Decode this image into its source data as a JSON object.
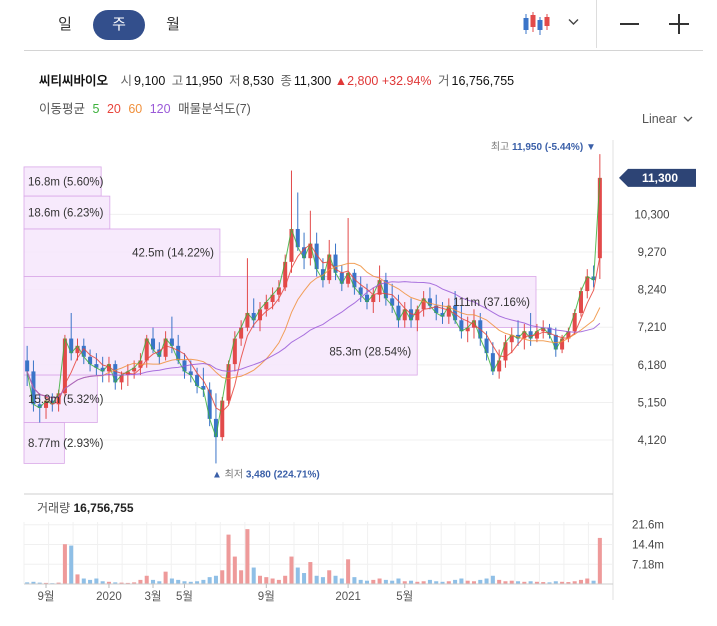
{
  "period_tabs": [
    {
      "label": "일",
      "active": false
    },
    {
      "label": "주",
      "active": true
    },
    {
      "label": "월",
      "active": false
    }
  ],
  "quote": {
    "name": "씨티씨바이오",
    "open_label": "시",
    "open": "9,100",
    "high_label": "고",
    "high": "11,950",
    "low_label": "저",
    "low": "8,530",
    "close_label": "종",
    "close": "11,300",
    "change": "2,800",
    "change_pct": "+32.94%",
    "volume_label": "거",
    "volume": "16,756,755"
  },
  "ma": {
    "label": "이동평균",
    "periods": [
      {
        "label": "5",
        "color": "#3bb03b"
      },
      {
        "label": "20",
        "color": "#e8453c"
      },
      {
        "label": "60",
        "color": "#f0903c"
      },
      {
        "label": "120",
        "color": "#9a5ad8"
      }
    ],
    "profile_label": "매물분석도(7)"
  },
  "scale_label": "Linear",
  "colors": {
    "up": "#e24a4a",
    "down": "#3a74c8",
    "profile_fill": "#f6e6fb",
    "profile_stroke": "#d9a7e8",
    "accent": "#334f8c"
  },
  "chart_data": {
    "type": "candlestick",
    "y_ticks": [
      "11,300",
      "10,300",
      "9,270",
      "8,240",
      "7,210",
      "6,180",
      "5,150",
      "4,120"
    ],
    "x_ticks": [
      "9월",
      "2020",
      "3월",
      "5월",
      "9월",
      "2021",
      "5월"
    ],
    "last_price": "11,300",
    "high_annotation": {
      "label": "최고",
      "value": "11,950 (-5.44%)"
    },
    "low_annotation": {
      "label": "최저",
      "value": "3,480 (224.71%)"
    },
    "volume_profile": [
      {
        "label": "16.8m (5.60%)",
        "price_range": [
          10800,
          11600
        ],
        "share_pct": 5.6
      },
      {
        "label": "18.6m (6.23%)",
        "price_range": [
          9900,
          10800
        ],
        "share_pct": 6.23
      },
      {
        "label": "42.5m (14.22%)",
        "price_range": [
          8600,
          9900
        ],
        "share_pct": 14.22
      },
      {
        "label": "111m (37.16%)",
        "price_range": [
          7200,
          8600
        ],
        "share_pct": 37.16
      },
      {
        "label": "85.3m (28.54%)",
        "price_range": [
          5900,
          7200
        ],
        "share_pct": 28.54
      },
      {
        "label": "15.9m (5.32%)",
        "price_range": [
          4600,
          5900
        ],
        "share_pct": 5.32
      },
      {
        "label": "8.77m (2.93%)",
        "price_range": [
          3480,
          4600
        ],
        "share_pct": 2.93
      }
    ],
    "candles": [
      [
        6300,
        6700,
        5600,
        6000
      ],
      [
        6000,
        6300,
        4900,
        5100
      ],
      [
        5100,
        5400,
        4600,
        5000
      ],
      [
        5000,
        5300,
        4700,
        5200
      ],
      [
        5200,
        5400,
        4900,
        5100
      ],
      [
        5100,
        5500,
        4900,
        5400
      ],
      [
        5400,
        7000,
        5300,
        6900
      ],
      [
        6900,
        7600,
        6300,
        6500
      ],
      [
        6500,
        6900,
        6300,
        6700
      ],
      [
        6700,
        6900,
        6200,
        6400
      ],
      [
        6400,
        6600,
        6000,
        6200
      ],
      [
        6200,
        6500,
        5900,
        6100
      ],
      [
        6100,
        6400,
        5700,
        6000
      ],
      [
        6000,
        6400,
        5700,
        6200
      ],
      [
        6200,
        6300,
        5500,
        5700
      ],
      [
        5700,
        6000,
        5500,
        5900
      ],
      [
        5900,
        6200,
        5600,
        6000
      ],
      [
        6000,
        6300,
        5800,
        6100
      ],
      [
        6100,
        6500,
        5900,
        6300
      ],
      [
        6300,
        7000,
        6100,
        6900
      ],
      [
        6900,
        7200,
        6500,
        6600
      ],
      [
        6600,
        6800,
        6200,
        6400
      ],
      [
        6400,
        7100,
        6300,
        6900
      ],
      [
        6900,
        7500,
        6500,
        6700
      ],
      [
        6700,
        7000,
        6200,
        6300
      ],
      [
        6300,
        6500,
        5800,
        6000
      ],
      [
        6000,
        6300,
        5700,
        5900
      ],
      [
        5900,
        6100,
        5400,
        5600
      ],
      [
        5600,
        6100,
        5300,
        5500
      ],
      [
        5500,
        5700,
        4500,
        4700
      ],
      [
        4700,
        5400,
        3480,
        4200
      ],
      [
        4200,
        5300,
        4100,
        5200
      ],
      [
        5200,
        6300,
        5100,
        6200
      ],
      [
        6200,
        7100,
        6000,
        6900
      ],
      [
        6900,
        7400,
        6700,
        7200
      ],
      [
        7200,
        9100,
        7100,
        7600
      ],
      [
        7600,
        8000,
        7200,
        7400
      ],
      [
        7400,
        7900,
        7100,
        7700
      ],
      [
        7700,
        8100,
        7500,
        7900
      ],
      [
        7900,
        8300,
        7700,
        8100
      ],
      [
        8100,
        8500,
        7900,
        8300
      ],
      [
        8300,
        9200,
        8200,
        9000
      ],
      [
        9000,
        11500,
        8700,
        9900
      ],
      [
        9900,
        10900,
        9300,
        9400
      ],
      [
        9400,
        9800,
        8800,
        9100
      ],
      [
        9100,
        10400,
        8900,
        9500
      ],
      [
        9500,
        9800,
        8600,
        8800
      ],
      [
        8800,
        9100,
        8300,
        8500
      ],
      [
        8500,
        9600,
        8400,
        9200
      ],
      [
        9200,
        9500,
        8500,
        8700
      ],
      [
        8700,
        8900,
        8200,
        8400
      ],
      [
        8400,
        10200,
        8300,
        8700
      ],
      [
        8700,
        8800,
        8100,
        8300
      ],
      [
        8300,
        8600,
        7900,
        8100
      ],
      [
        8100,
        8400,
        7700,
        7900
      ],
      [
        7900,
        8300,
        7600,
        8100
      ],
      [
        8100,
        8900,
        7900,
        8500
      ],
      [
        8500,
        8700,
        7800,
        8000
      ],
      [
        8000,
        8400,
        7600,
        7800
      ],
      [
        7800,
        8100,
        7200,
        7400
      ],
      [
        7400,
        7900,
        7200,
        7700
      ],
      [
        7700,
        8000,
        7200,
        7400
      ],
      [
        7400,
        7800,
        7100,
        7700
      ],
      [
        7700,
        8200,
        7500,
        8000
      ],
      [
        8000,
        8300,
        7700,
        7800
      ],
      [
        7800,
        8100,
        7400,
        7600
      ],
      [
        7600,
        7900,
        7300,
        7500
      ],
      [
        7500,
        8000,
        7300,
        7800
      ],
      [
        7800,
        8200,
        7300,
        7400
      ],
      [
        7400,
        7800,
        6900,
        7100
      ],
      [
        7100,
        7500,
        6800,
        7200
      ],
      [
        7200,
        7700,
        6900,
        7400
      ],
      [
        7400,
        7600,
        6700,
        6900
      ],
      [
        6900,
        7100,
        6300,
        6500
      ],
      [
        6500,
        6800,
        5900,
        6000
      ],
      [
        6000,
        6600,
        5800,
        6300
      ],
      [
        6300,
        7000,
        6100,
        6800
      ],
      [
        6800,
        7200,
        6500,
        7000
      ],
      [
        7000,
        7400,
        6700,
        6900
      ],
      [
        6900,
        7300,
        6600,
        7100
      ],
      [
        7100,
        7600,
        6700,
        6900
      ],
      [
        6900,
        7300,
        6800,
        7100
      ],
      [
        7100,
        7400,
        6900,
        7200
      ],
      [
        7200,
        7300,
        6900,
        7000
      ],
      [
        7000,
        7200,
        6400,
        6600
      ],
      [
        6600,
        7000,
        6500,
        6900
      ],
      [
        6900,
        7200,
        6800,
        7100
      ],
      [
        7100,
        7700,
        7000,
        7600
      ],
      [
        7600,
        8300,
        7500,
        8200
      ],
      [
        8200,
        8800,
        8000,
        8600
      ],
      [
        8600,
        8900,
        8300,
        8500
      ],
      [
        9100,
        11950,
        8530,
        11300
      ]
    ],
    "volumes_m": [
      0.6,
      0.8,
      0.5,
      0.4,
      0.3,
      0.5,
      14.5,
      14.0,
      3.5,
      2.0,
      1.5,
      2.0,
      1.0,
      0.8,
      0.6,
      0.5,
      0.4,
      0.6,
      1.5,
      3.0,
      1.5,
      1.0,
      4.5,
      2.0,
      1.5,
      1.0,
      0.8,
      1.0,
      1.5,
      2.5,
      3.0,
      5.0,
      18.0,
      10.0,
      5.0,
      20.0,
      6.0,
      3.0,
      2.5,
      2.0,
      1.5,
      3.0,
      10.0,
      6.0,
      4.0,
      8.0,
      3.0,
      2.5,
      5.0,
      3.0,
      2.0,
      9.0,
      2.5,
      1.5,
      1.2,
      1.5,
      2.0,
      1.5,
      1.2,
      2.0,
      1.0,
      1.2,
      0.8,
      1.0,
      1.5,
      1.0,
      0.8,
      1.0,
      1.5,
      2.0,
      1.2,
      1.0,
      1.5,
      2.0,
      3.0,
      1.5,
      1.0,
      1.2,
      1.0,
      0.8,
      1.0,
      0.8,
      0.7,
      0.6,
      1.0,
      0.8,
      0.7,
      1.0,
      1.5,
      2.0,
      1.2,
      16.8
    ],
    "volume_label": "거래량",
    "volume_value": "16,756,755",
    "volume_ticks": [
      "21.6m",
      "14.4m",
      "7.18m"
    ]
  }
}
